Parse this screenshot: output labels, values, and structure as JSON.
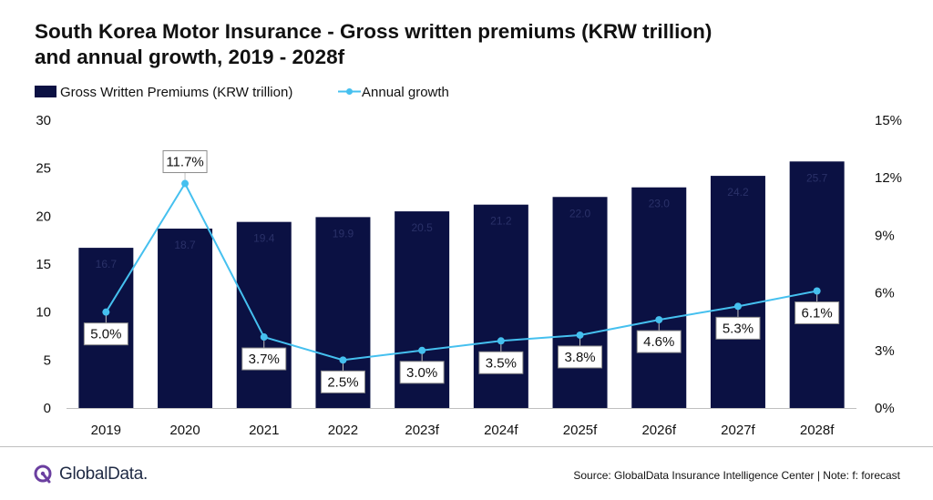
{
  "title": {
    "line1": "South Korea Motor Insurance - Gross written premiums (KRW trillion)",
    "line2": "and annual growth, 2019 - 2028f"
  },
  "colors": {
    "bar": "#0b1143",
    "line": "#45c0ef",
    "axis": "#bfbfbf"
  },
  "chart_data": {
    "type": "bar+line",
    "categories": [
      "2019",
      "2020",
      "2021",
      "2022",
      "2023f",
      "2024f",
      "2025f",
      "2026f",
      "2027f",
      "2028f"
    ],
    "series": [
      {
        "name": "Gross Written Premiums (KRW trillion)",
        "type": "bar",
        "axis": "left",
        "values": [
          16.7,
          18.7,
          19.4,
          19.9,
          20.5,
          21.2,
          22.0,
          23.0,
          24.2,
          25.7
        ]
      },
      {
        "name": "Annual growth",
        "type": "line",
        "axis": "right",
        "values": [
          5.0,
          11.7,
          3.7,
          2.5,
          3.0,
          3.5,
          3.8,
          4.6,
          5.3,
          6.1
        ],
        "labels": [
          "5.0%",
          "11.7%",
          "3.7%",
          "2.5%",
          "3.0%",
          "3.5%",
          "3.8%",
          "4.6%",
          "5.3%",
          "6.1%"
        ]
      }
    ],
    "y_left": {
      "min": 0,
      "max": 30,
      "ticks": [
        "0",
        "5",
        "10",
        "15",
        "20",
        "25",
        "30"
      ]
    },
    "y_right": {
      "min": 0,
      "max": 15,
      "ticks": [
        "0%",
        "3%",
        "6%",
        "9%",
        "12%",
        "15%"
      ]
    },
    "legend_position": "top-left",
    "grid": false
  },
  "logo": {
    "text": "GlobalData."
  },
  "source": "Source: GlobalData Insurance Intelligence Center | Note: f: forecast"
}
